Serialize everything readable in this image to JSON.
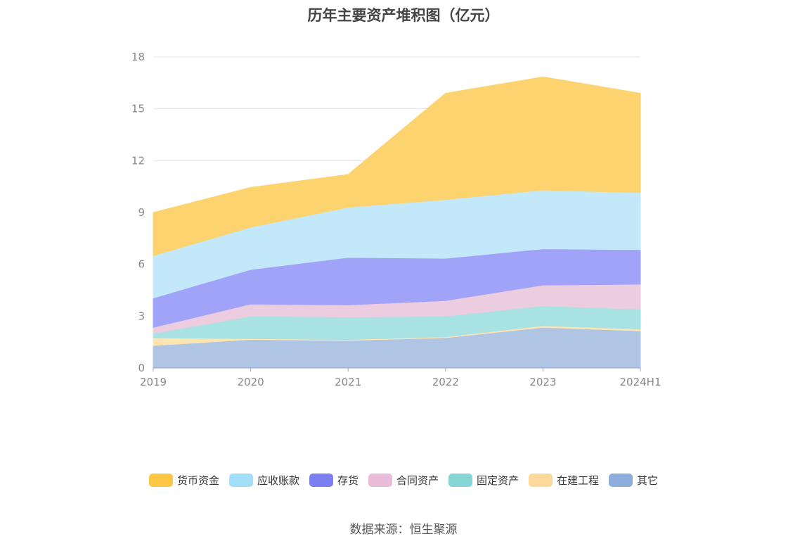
{
  "title": "历年主要资产堆积图（亿元）",
  "source_note": "数据来源：恒生聚源",
  "colors": {
    "货币资金": "#fdd36f",
    "应收账款": "#c3e8fa",
    "存货": "#a0a3f8",
    "合同资产": "#ecccdf",
    "固定资产": "#a9e2e2",
    "在建工程": "#fde5b2",
    "其它": "#b0c4e4"
  },
  "legend_colors": [
    "#fcc744",
    "#a3def8",
    "#7c7ff2",
    "#e9bcd9",
    "#86d6d6",
    "#fcd99a",
    "#8daddc"
  ],
  "chart_data": {
    "type": "area",
    "stacked": true,
    "title": "历年主要资产堆积图（亿元）",
    "xlabel": "",
    "ylabel": "",
    "categories": [
      "2019",
      "2020",
      "2021",
      "2022",
      "2023",
      "2024H1"
    ],
    "ylim": [
      0,
      18
    ],
    "yticks": [
      0,
      3,
      6,
      9,
      12,
      15,
      18
    ],
    "grid": true,
    "legend_position": "bottom",
    "series": [
      {
        "name": "其它",
        "values": [
          1.3,
          1.65,
          1.6,
          1.75,
          2.35,
          2.15
        ]
      },
      {
        "name": "在建工程",
        "values": [
          0.45,
          0.05,
          0.05,
          0.05,
          0.1,
          0.1
        ]
      },
      {
        "name": "固定资产",
        "values": [
          0.25,
          1.3,
          1.3,
          1.2,
          1.15,
          1.15
        ]
      },
      {
        "name": "合同资产",
        "values": [
          0.35,
          0.7,
          0.7,
          0.9,
          1.2,
          1.45
        ]
      },
      {
        "name": "存货",
        "values": [
          1.7,
          2.0,
          2.75,
          2.45,
          2.1,
          2.0
        ]
      },
      {
        "name": "应收账款",
        "values": [
          2.45,
          2.45,
          2.9,
          3.4,
          3.4,
          3.3
        ]
      },
      {
        "name": "货币资金",
        "values": [
          2.5,
          2.3,
          1.9,
          6.15,
          6.55,
          5.75
        ]
      }
    ],
    "legend_order": [
      "货币资金",
      "应收账款",
      "存货",
      "合同资产",
      "固定资产",
      "在建工程",
      "其它"
    ]
  }
}
